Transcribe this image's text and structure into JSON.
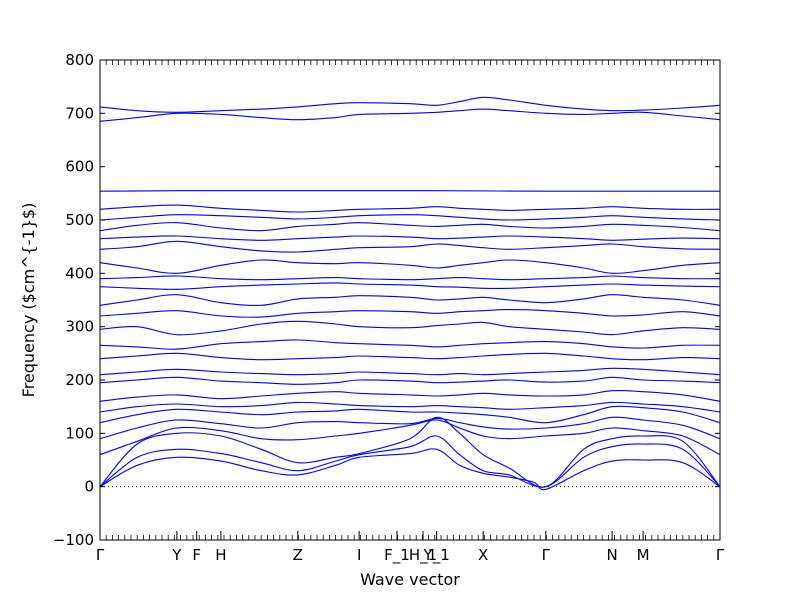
{
  "chart_data": {
    "type": "line",
    "title": "",
    "xlabel": "Wave vector",
    "ylabel": "Frequency ($cm^{-1}$)",
    "ylim": [
      -100,
      800
    ],
    "yticks": [
      -100,
      0,
      100,
      200,
      300,
      400,
      500,
      600,
      700,
      800
    ],
    "xlim": [
      0,
      1
    ],
    "high_symmetry_points": [
      {
        "label": "Γ",
        "x": 0.0
      },
      {
        "label": "Y",
        "x": 0.124
      },
      {
        "label": "F",
        "x": 0.156
      },
      {
        "label": "H",
        "x": 0.195
      },
      {
        "label": "Z",
        "x": 0.319
      },
      {
        "label": "I",
        "x": 0.418
      },
      {
        "label": "F_1",
        "x": 0.479
      },
      {
        "label": "H_1",
        "x": 0.521
      },
      {
        "label": "Y_1",
        "x": 0.543
      },
      {
        "label": "X",
        "x": 0.618
      },
      {
        "label": "Γ",
        "x": 0.719
      },
      {
        "label": "N",
        "x": 0.826
      },
      {
        "label": "M",
        "x": 0.876
      },
      {
        "label": "Γ",
        "x": 1.0
      }
    ],
    "zero_line": 0,
    "line_color": "#0000ff",
    "series": [
      {
        "x": [
          0,
          0.06,
          0.124,
          0.195,
          0.26,
          0.319,
          0.38,
          0.418,
          0.5,
          0.543,
          0.58,
          0.618,
          0.66,
          0.7,
          0.719,
          0.78,
          0.826,
          0.876,
          0.94,
          1.0
        ],
        "values": [
          0,
          40,
          55,
          48,
          30,
          22,
          40,
          55,
          62,
          70,
          40,
          25,
          18,
          8,
          -5,
          30,
          48,
          50,
          45,
          0
        ]
      },
      {
        "x": [
          0,
          0.06,
          0.124,
          0.195,
          0.26,
          0.319,
          0.38,
          0.418,
          0.5,
          0.543,
          0.58,
          0.618,
          0.66,
          0.719,
          0.78,
          0.826,
          0.876,
          0.94,
          1.0
        ],
        "values": [
          0,
          55,
          70,
          62,
          45,
          30,
          48,
          60,
          75,
          95,
          60,
          30,
          22,
          0,
          55,
          75,
          80,
          70,
          0
        ]
      },
      {
        "x": [
          0,
          0.06,
          0.124,
          0.195,
          0.26,
          0.319,
          0.38,
          0.418,
          0.5,
          0.543,
          0.58,
          0.618,
          0.66,
          0.719,
          0.78,
          0.826,
          0.876,
          0.94,
          1.0
        ],
        "values": [
          0,
          80,
          100,
          95,
          70,
          45,
          55,
          62,
          90,
          130,
          100,
          60,
          35,
          0,
          70,
          90,
          95,
          85,
          0
        ]
      },
      {
        "x": [
          0,
          0.06,
          0.124,
          0.195,
          0.26,
          0.319,
          0.38,
          0.418,
          0.5,
          0.543,
          0.58,
          0.618,
          0.66,
          0.719,
          0.78,
          0.826,
          0.876,
          0.94,
          1.0
        ],
        "values": [
          60,
          85,
          110,
          105,
          90,
          88,
          95,
          100,
          115,
          125,
          110,
          95,
          90,
          95,
          100,
          110,
          105,
          95,
          60
        ]
      },
      {
        "x": [
          0,
          0.06,
          0.124,
          0.195,
          0.26,
          0.319,
          0.38,
          0.418,
          0.5,
          0.543,
          0.58,
          0.618,
          0.66,
          0.719,
          0.78,
          0.826,
          0.876,
          0.94,
          1.0
        ],
        "values": [
          90,
          110,
          125,
          118,
          110,
          120,
          122,
          120,
          118,
          128,
          120,
          112,
          108,
          110,
          118,
          130,
          125,
          115,
          90
        ]
      },
      {
        "x": [
          0,
          0.06,
          0.124,
          0.195,
          0.26,
          0.319,
          0.38,
          0.418,
          0.5,
          0.543,
          0.58,
          0.618,
          0.66,
          0.719,
          0.78,
          0.826,
          0.876,
          0.94,
          1.0
        ],
        "values": [
          120,
          135,
          145,
          140,
          135,
          140,
          142,
          145,
          140,
          140,
          138,
          135,
          130,
          120,
          135,
          150,
          148,
          140,
          120
        ]
      },
      {
        "x": [
          0,
          0.06,
          0.124,
          0.195,
          0.26,
          0.319,
          0.38,
          0.418,
          0.5,
          0.543,
          0.58,
          0.618,
          0.66,
          0.719,
          0.78,
          0.826,
          0.876,
          0.94,
          1.0
        ],
        "values": [
          140,
          150,
          155,
          150,
          152,
          158,
          155,
          152,
          150,
          152,
          150,
          148,
          145,
          148,
          152,
          158,
          155,
          150,
          140
        ]
      },
      {
        "x": [
          0,
          0.06,
          0.124,
          0.195,
          0.26,
          0.319,
          0.38,
          0.418,
          0.5,
          0.543,
          0.58,
          0.618,
          0.66,
          0.719,
          0.78,
          0.826,
          0.876,
          0.94,
          1.0
        ],
        "values": [
          160,
          168,
          172,
          165,
          170,
          175,
          178,
          175,
          172,
          170,
          172,
          175,
          172,
          170,
          172,
          180,
          178,
          172,
          160
        ]
      },
      {
        "x": [
          0,
          0.06,
          0.124,
          0.195,
          0.26,
          0.319,
          0.38,
          0.418,
          0.5,
          0.543,
          0.58,
          0.618,
          0.66,
          0.719,
          0.78,
          0.826,
          0.876,
          0.94,
          1.0
        ],
        "values": [
          195,
          200,
          205,
          198,
          195,
          192,
          195,
          200,
          198,
          195,
          196,
          198,
          200,
          196,
          198,
          205,
          200,
          198,
          195
        ]
      },
      {
        "x": [
          0,
          0.06,
          0.124,
          0.195,
          0.26,
          0.319,
          0.38,
          0.418,
          0.5,
          0.543,
          0.58,
          0.618,
          0.66,
          0.719,
          0.78,
          0.826,
          0.876,
          0.94,
          1.0
        ],
        "values": [
          210,
          215,
          220,
          215,
          212,
          210,
          212,
          215,
          212,
          210,
          212,
          210,
          212,
          215,
          218,
          222,
          220,
          215,
          210
        ]
      },
      {
        "x": [
          0,
          0.06,
          0.124,
          0.195,
          0.26,
          0.319,
          0.38,
          0.418,
          0.5,
          0.543,
          0.58,
          0.618,
          0.66,
          0.719,
          0.78,
          0.826,
          0.876,
          0.94,
          1.0
        ],
        "values": [
          240,
          245,
          250,
          242,
          238,
          240,
          242,
          245,
          242,
          240,
          242,
          245,
          248,
          250,
          245,
          240,
          238,
          242,
          240
        ]
      },
      {
        "x": [
          0,
          0.06,
          0.124,
          0.195,
          0.26,
          0.319,
          0.38,
          0.418,
          0.5,
          0.543,
          0.58,
          0.618,
          0.66,
          0.719,
          0.78,
          0.826,
          0.876,
          0.94,
          1.0
        ],
        "values": [
          265,
          262,
          258,
          268,
          272,
          275,
          270,
          268,
          265,
          262,
          265,
          268,
          270,
          272,
          268,
          262,
          260,
          265,
          265
        ]
      },
      {
        "x": [
          0,
          0.06,
          0.124,
          0.195,
          0.26,
          0.319,
          0.38,
          0.418,
          0.5,
          0.543,
          0.58,
          0.618,
          0.66,
          0.719,
          0.78,
          0.826,
          0.876,
          0.94,
          1.0
        ],
        "values": [
          295,
          300,
          285,
          292,
          305,
          310,
          305,
          300,
          298,
          302,
          305,
          308,
          300,
          295,
          290,
          285,
          292,
          298,
          295
        ]
      },
      {
        "x": [
          0,
          0.06,
          0.124,
          0.195,
          0.26,
          0.319,
          0.38,
          0.418,
          0.5,
          0.543,
          0.58,
          0.618,
          0.66,
          0.719,
          0.78,
          0.826,
          0.876,
          0.94,
          1.0
        ],
        "values": [
          320,
          325,
          330,
          320,
          318,
          325,
          328,
          330,
          328,
          325,
          328,
          330,
          332,
          330,
          325,
          320,
          322,
          328,
          320
        ]
      },
      {
        "x": [
          0,
          0.06,
          0.124,
          0.195,
          0.26,
          0.319,
          0.38,
          0.418,
          0.5,
          0.543,
          0.58,
          0.618,
          0.66,
          0.719,
          0.78,
          0.826,
          0.876,
          0.94,
          1.0
        ],
        "values": [
          340,
          350,
          360,
          345,
          340,
          352,
          355,
          358,
          355,
          350,
          352,
          355,
          350,
          345,
          352,
          360,
          355,
          350,
          340
        ]
      },
      {
        "x": [
          0,
          0.06,
          0.124,
          0.195,
          0.26,
          0.319,
          0.38,
          0.418,
          0.5,
          0.543,
          0.58,
          0.618,
          0.66,
          0.719,
          0.78,
          0.826,
          0.876,
          0.94,
          1.0
        ],
        "values": [
          375,
          372,
          370,
          375,
          378,
          380,
          382,
          380,
          378,
          375,
          374,
          372,
          372,
          375,
          378,
          380,
          378,
          376,
          375
        ]
      },
      {
        "x": [
          0,
          0.06,
          0.124,
          0.195,
          0.26,
          0.319,
          0.38,
          0.418,
          0.5,
          0.543,
          0.58,
          0.618,
          0.66,
          0.719,
          0.78,
          0.826,
          0.876,
          0.94,
          1.0
        ],
        "values": [
          390,
          392,
          395,
          390,
          388,
          390,
          392,
          390,
          388,
          390,
          392,
          390,
          388,
          390,
          392,
          395,
          392,
          390,
          390
        ]
      },
      {
        "x": [
          0,
          0.06,
          0.124,
          0.195,
          0.26,
          0.319,
          0.38,
          0.418,
          0.5,
          0.543,
          0.58,
          0.618,
          0.66,
          0.719,
          0.78,
          0.826,
          0.876,
          0.94,
          1.0
        ],
        "values": [
          420,
          410,
          400,
          415,
          425,
          420,
          418,
          420,
          415,
          410,
          415,
          420,
          425,
          420,
          410,
          400,
          405,
          415,
          420
        ]
      },
      {
        "x": [
          0,
          0.06,
          0.124,
          0.195,
          0.26,
          0.319,
          0.38,
          0.418,
          0.5,
          0.543,
          0.58,
          0.618,
          0.66,
          0.719,
          0.78,
          0.826,
          0.876,
          0.94,
          1.0
        ],
        "values": [
          445,
          450,
          460,
          450,
          442,
          440,
          445,
          448,
          450,
          455,
          452,
          448,
          445,
          448,
          452,
          455,
          450,
          446,
          445
        ]
      },
      {
        "x": [
          0,
          0.06,
          0.124,
          0.195,
          0.26,
          0.319,
          0.38,
          0.418,
          0.5,
          0.543,
          0.58,
          0.618,
          0.66,
          0.719,
          0.78,
          0.826,
          0.876,
          0.94,
          1.0
        ],
        "values": [
          465,
          468,
          470,
          465,
          462,
          465,
          468,
          470,
          468,
          465,
          466,
          468,
          470,
          468,
          465,
          462,
          464,
          466,
          465
        ]
      },
      {
        "x": [
          0,
          0.06,
          0.124,
          0.195,
          0.26,
          0.319,
          0.38,
          0.418,
          0.5,
          0.543,
          0.58,
          0.618,
          0.66,
          0.719,
          0.78,
          0.826,
          0.876,
          0.94,
          1.0
        ],
        "values": [
          480,
          490,
          495,
          485,
          480,
          488,
          492,
          495,
          490,
          488,
          490,
          492,
          488,
          485,
          488,
          492,
          490,
          486,
          480
        ]
      },
      {
        "x": [
          0,
          0.06,
          0.124,
          0.195,
          0.26,
          0.319,
          0.38,
          0.418,
          0.5,
          0.543,
          0.58,
          0.618,
          0.66,
          0.719,
          0.78,
          0.826,
          0.876,
          0.94,
          1.0
        ],
        "values": [
          500,
          505,
          510,
          508,
          505,
          502,
          505,
          508,
          510,
          508,
          505,
          502,
          500,
          502,
          505,
          508,
          505,
          502,
          500
        ]
      },
      {
        "x": [
          0,
          0.06,
          0.124,
          0.195,
          0.26,
          0.319,
          0.38,
          0.418,
          0.5,
          0.543,
          0.58,
          0.618,
          0.66,
          0.719,
          0.78,
          0.826,
          0.876,
          0.94,
          1.0
        ],
        "values": [
          520,
          525,
          528,
          522,
          518,
          515,
          518,
          520,
          522,
          525,
          522,
          520,
          518,
          520,
          522,
          525,
          522,
          520,
          520
        ]
      },
      {
        "x": [
          0,
          0.124,
          0.319,
          0.418,
          0.543,
          0.719,
          0.876,
          1.0
        ],
        "values": [
          554,
          555,
          555,
          555,
          555,
          554,
          554,
          554
        ]
      },
      {
        "x": [
          0,
          0.06,
          0.124,
          0.195,
          0.26,
          0.319,
          0.38,
          0.418,
          0.5,
          0.543,
          0.58,
          0.618,
          0.66,
          0.719,
          0.78,
          0.826,
          0.876,
          0.94,
          1.0
        ],
        "values": [
          685,
          692,
          700,
          698,
          692,
          688,
          692,
          698,
          700,
          702,
          705,
          708,
          705,
          700,
          698,
          700,
          702,
          695,
          688
        ]
      },
      {
        "x": [
          0,
          0.06,
          0.124,
          0.195,
          0.26,
          0.319,
          0.38,
          0.418,
          0.5,
          0.543,
          0.58,
          0.618,
          0.66,
          0.719,
          0.78,
          0.826,
          0.876,
          0.94,
          1.0
        ],
        "values": [
          712,
          705,
          702,
          705,
          708,
          712,
          718,
          720,
          718,
          715,
          722,
          730,
          725,
          715,
          708,
          705,
          706,
          710,
          715
        ]
      }
    ]
  }
}
